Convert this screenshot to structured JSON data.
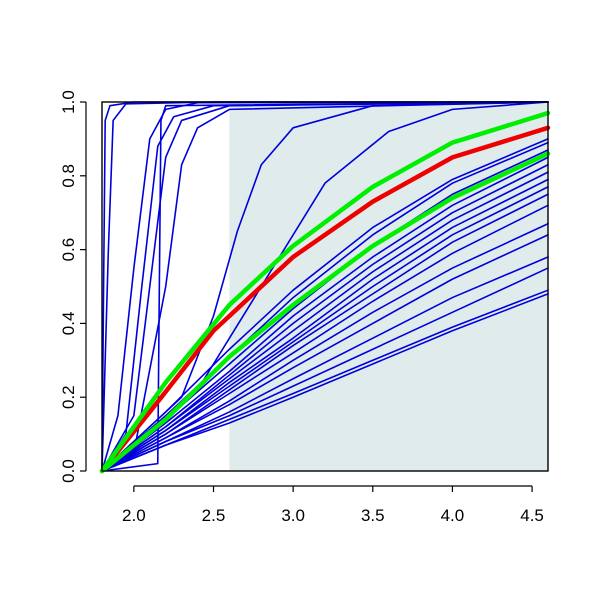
{
  "chart_data": {
    "type": "line",
    "title": "",
    "xlabel": "",
    "ylabel": "",
    "xlim": [
      1.8,
      4.6
    ],
    "ylim": [
      0.0,
      1.0
    ],
    "x_ticks": [
      2.0,
      2.5,
      3.0,
      3.5,
      4.0,
      4.5
    ],
    "x_tick_labels": [
      "2.0",
      "2.5",
      "3.0",
      "3.5",
      "4.0",
      "4.5"
    ],
    "y_ticks": [
      0.0,
      0.2,
      0.4,
      0.6,
      0.8,
      1.0
    ],
    "y_tick_labels": [
      "0.0",
      "0.2",
      "0.4",
      "0.6",
      "0.8",
      "1.0"
    ],
    "grid": false,
    "legend": "none",
    "shaded_region": {
      "x_from": 2.6,
      "x_to": 4.6,
      "color": "#e0ecec"
    },
    "colors": {
      "blue": "#0000dd",
      "red": "#ee0000",
      "green": "#00ee00",
      "axis": "#000000"
    },
    "series": [
      {
        "color": "#ee0000",
        "emphasis": true,
        "points": [
          [
            1.8,
            0.0
          ],
          [
            2.1,
            0.16
          ],
          [
            2.5,
            0.38
          ],
          [
            3.0,
            0.58
          ],
          [
            3.5,
            0.73
          ],
          [
            4.0,
            0.85
          ],
          [
            4.6,
            0.93
          ]
        ]
      },
      {
        "color": "#00ee00",
        "emphasis": true,
        "points": [
          [
            1.8,
            0.0
          ],
          [
            2.2,
            0.24
          ],
          [
            2.6,
            0.45
          ],
          [
            3.0,
            0.61
          ],
          [
            3.5,
            0.77
          ],
          [
            4.0,
            0.89
          ],
          [
            4.6,
            0.97
          ]
        ]
      },
      {
        "color": "#00ee00",
        "emphasis": true,
        "points": [
          [
            1.8,
            0.0
          ],
          [
            2.2,
            0.14
          ],
          [
            2.6,
            0.31
          ],
          [
            3.0,
            0.45
          ],
          [
            3.5,
            0.61
          ],
          [
            4.0,
            0.74
          ],
          [
            4.6,
            0.86
          ]
        ]
      },
      {
        "color": "#0000dd",
        "points": [
          [
            1.8,
            0.0
          ],
          [
            1.81,
            0.5
          ],
          [
            1.82,
            0.95
          ],
          [
            1.85,
            0.99
          ],
          [
            2.0,
            1.0
          ],
          [
            4.6,
            1.0
          ]
        ]
      },
      {
        "color": "#0000dd",
        "points": [
          [
            1.8,
            0.0
          ],
          [
            1.84,
            0.6
          ],
          [
            1.87,
            0.95
          ],
          [
            1.95,
            0.995
          ],
          [
            2.5,
            1.0
          ],
          [
            4.6,
            1.0
          ]
        ]
      },
      {
        "color": "#0000dd",
        "points": [
          [
            1.8,
            0.0
          ],
          [
            1.9,
            0.15
          ],
          [
            2.0,
            0.55
          ],
          [
            2.1,
            0.9
          ],
          [
            2.2,
            0.98
          ],
          [
            2.4,
            0.998
          ],
          [
            4.6,
            1.0
          ]
        ]
      },
      {
        "color": "#0000dd",
        "points": [
          [
            1.8,
            0.0
          ],
          [
            1.95,
            0.1
          ],
          [
            2.05,
            0.5
          ],
          [
            2.15,
            0.88
          ],
          [
            2.25,
            0.96
          ],
          [
            2.5,
            0.99
          ],
          [
            4.6,
            1.0
          ]
        ]
      },
      {
        "color": "#0000dd",
        "points": [
          [
            1.8,
            0.0
          ],
          [
            2.0,
            0.15
          ],
          [
            2.1,
            0.5
          ],
          [
            2.2,
            0.85
          ],
          [
            2.3,
            0.95
          ],
          [
            2.6,
            0.99
          ],
          [
            4.6,
            1.0
          ]
        ]
      },
      {
        "color": "#0000dd",
        "points": [
          [
            1.8,
            0.0
          ],
          [
            2.15,
            0.02
          ],
          [
            2.16,
            0.5
          ],
          [
            2.17,
            0.95
          ],
          [
            2.2,
            0.99
          ],
          [
            4.6,
            1.0
          ]
        ]
      },
      {
        "color": "#0000dd",
        "points": [
          [
            1.8,
            0.0
          ],
          [
            2.0,
            0.05
          ],
          [
            2.2,
            0.5
          ],
          [
            2.3,
            0.83
          ],
          [
            2.4,
            0.93
          ],
          [
            2.6,
            0.98
          ],
          [
            4.6,
            1.0
          ]
        ]
      },
      {
        "color": "#0000dd",
        "points": [
          [
            1.8,
            0.0
          ],
          [
            2.3,
            0.2
          ],
          [
            2.5,
            0.42
          ],
          [
            2.65,
            0.65
          ],
          [
            2.8,
            0.83
          ],
          [
            3.0,
            0.93
          ],
          [
            3.5,
            0.99
          ],
          [
            4.6,
            1.0
          ]
        ]
      },
      {
        "color": "#0000dd",
        "points": [
          [
            1.8,
            0.0
          ],
          [
            2.4,
            0.22
          ],
          [
            2.8,
            0.5
          ],
          [
            3.2,
            0.78
          ],
          [
            3.6,
            0.92
          ],
          [
            4.0,
            0.98
          ],
          [
            4.6,
            1.0
          ]
        ]
      },
      {
        "color": "#0000dd",
        "points": [
          [
            1.8,
            0.0
          ],
          [
            2.2,
            0.16
          ],
          [
            2.6,
            0.33
          ],
          [
            3.0,
            0.49
          ],
          [
            3.5,
            0.66
          ],
          [
            4.0,
            0.79
          ],
          [
            4.6,
            0.9
          ]
        ]
      },
      {
        "color": "#0000dd",
        "points": [
          [
            1.8,
            0.0
          ],
          [
            2.2,
            0.15
          ],
          [
            2.6,
            0.31
          ],
          [
            3.0,
            0.47
          ],
          [
            3.5,
            0.64
          ],
          [
            4.0,
            0.78
          ],
          [
            4.6,
            0.89
          ]
        ]
      },
      {
        "color": "#0000dd",
        "points": [
          [
            1.8,
            0.0
          ],
          [
            2.2,
            0.14
          ],
          [
            2.6,
            0.29
          ],
          [
            3.0,
            0.44
          ],
          [
            3.5,
            0.61
          ],
          [
            4.0,
            0.75
          ],
          [
            4.6,
            0.87
          ]
        ]
      },
      {
        "color": "#0000dd",
        "points": [
          [
            1.8,
            0.0
          ],
          [
            2.2,
            0.13
          ],
          [
            2.6,
            0.27
          ],
          [
            3.0,
            0.42
          ],
          [
            3.5,
            0.58
          ],
          [
            4.0,
            0.72
          ],
          [
            4.6,
            0.85
          ]
        ]
      },
      {
        "color": "#0000dd",
        "points": [
          [
            1.8,
            0.0
          ],
          [
            2.2,
            0.12
          ],
          [
            2.6,
            0.26
          ],
          [
            3.0,
            0.4
          ],
          [
            3.5,
            0.56
          ],
          [
            4.0,
            0.7
          ],
          [
            4.6,
            0.83
          ]
        ]
      },
      {
        "color": "#0000dd",
        "points": [
          [
            1.8,
            0.0
          ],
          [
            2.2,
            0.12
          ],
          [
            2.6,
            0.25
          ],
          [
            3.0,
            0.38
          ],
          [
            3.5,
            0.54
          ],
          [
            4.0,
            0.68
          ],
          [
            4.6,
            0.81
          ]
        ]
      },
      {
        "color": "#0000dd",
        "points": [
          [
            1.8,
            0.0
          ],
          [
            2.2,
            0.11
          ],
          [
            2.6,
            0.24
          ],
          [
            3.0,
            0.36
          ],
          [
            3.5,
            0.52
          ],
          [
            4.0,
            0.66
          ],
          [
            4.6,
            0.79
          ]
        ]
      },
      {
        "color": "#0000dd",
        "points": [
          [
            1.8,
            0.0
          ],
          [
            2.2,
            0.11
          ],
          [
            2.6,
            0.23
          ],
          [
            3.0,
            0.35
          ],
          [
            3.5,
            0.5
          ],
          [
            4.0,
            0.64
          ],
          [
            4.6,
            0.77
          ]
        ]
      },
      {
        "color": "#0000dd",
        "points": [
          [
            1.8,
            0.0
          ],
          [
            2.2,
            0.1
          ],
          [
            2.6,
            0.22
          ],
          [
            3.0,
            0.34
          ],
          [
            3.5,
            0.48
          ],
          [
            4.0,
            0.62
          ],
          [
            4.6,
            0.75
          ]
        ]
      },
      {
        "color": "#0000dd",
        "points": [
          [
            1.8,
            0.0
          ],
          [
            2.2,
            0.1
          ],
          [
            2.6,
            0.21
          ],
          [
            3.0,
            0.32
          ],
          [
            3.5,
            0.46
          ],
          [
            4.0,
            0.59
          ],
          [
            4.6,
            0.72
          ]
        ]
      },
      {
        "color": "#0000dd",
        "points": [
          [
            1.8,
            0.0
          ],
          [
            2.2,
            0.09
          ],
          [
            2.6,
            0.19
          ],
          [
            3.0,
            0.3
          ],
          [
            3.5,
            0.43
          ],
          [
            4.0,
            0.55
          ],
          [
            4.6,
            0.67
          ]
        ]
      },
      {
        "color": "#0000dd",
        "points": [
          [
            1.8,
            0.0
          ],
          [
            2.2,
            0.09
          ],
          [
            2.6,
            0.18
          ],
          [
            3.0,
            0.28
          ],
          [
            3.5,
            0.4
          ],
          [
            4.0,
            0.52
          ],
          [
            4.6,
            0.64
          ]
        ]
      },
      {
        "color": "#0000dd",
        "points": [
          [
            1.8,
            0.0
          ],
          [
            2.2,
            0.08
          ],
          [
            2.6,
            0.16
          ],
          [
            3.0,
            0.25
          ],
          [
            3.5,
            0.36
          ],
          [
            4.0,
            0.47
          ],
          [
            4.6,
            0.58
          ]
        ]
      },
      {
        "color": "#0000dd",
        "points": [
          [
            1.8,
            0.0
          ],
          [
            2.2,
            0.08
          ],
          [
            2.6,
            0.15
          ],
          [
            3.0,
            0.23
          ],
          [
            3.5,
            0.33
          ],
          [
            4.0,
            0.43
          ],
          [
            4.6,
            0.55
          ]
        ]
      },
      {
        "color": "#0000dd",
        "points": [
          [
            1.8,
            0.0
          ],
          [
            2.2,
            0.07
          ],
          [
            2.6,
            0.14
          ],
          [
            3.0,
            0.21
          ],
          [
            3.5,
            0.3
          ],
          [
            4.0,
            0.39
          ],
          [
            4.6,
            0.49
          ]
        ]
      },
      {
        "color": "#0000dd",
        "points": [
          [
            1.8,
            0.0
          ],
          [
            2.2,
            0.07
          ],
          [
            2.6,
            0.13
          ],
          [
            3.0,
            0.2
          ],
          [
            3.5,
            0.29
          ],
          [
            4.0,
            0.38
          ],
          [
            4.6,
            0.48
          ]
        ]
      }
    ]
  }
}
